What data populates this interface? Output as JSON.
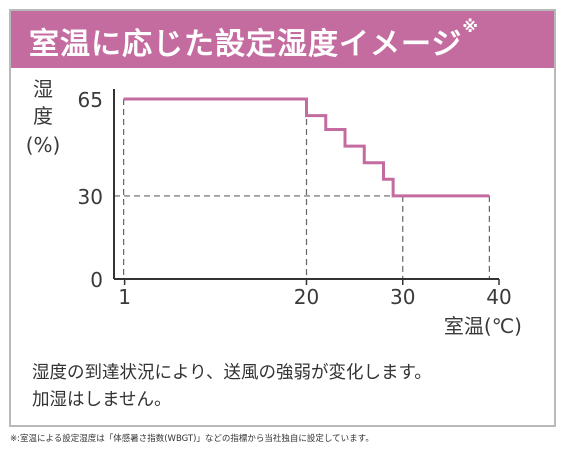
{
  "header": {
    "title": "室温に応じた設定湿度イメージ",
    "mark": "※"
  },
  "chart_data": {
    "type": "line",
    "ylabel": "湿度(%)",
    "xlabel": "室温(℃)",
    "x_ticks": [
      1,
      20,
      30,
      40
    ],
    "y_ticks": [
      65,
      30,
      0
    ],
    "xlim": [
      0,
      40
    ],
    "ylim": [
      0,
      65
    ],
    "grid": false,
    "series": [
      {
        "x": [
          1,
          20,
          20,
          22,
          22,
          24,
          24,
          26,
          26,
          28,
          28,
          29,
          29,
          30,
          30,
          39
        ],
        "y": [
          65,
          65,
          59,
          59,
          54,
          54,
          48,
          48,
          42,
          42,
          36,
          36,
          30,
          30,
          30,
          30
        ]
      }
    ],
    "reference_points": [
      {
        "x": 1,
        "y": 65
      },
      {
        "x": 20,
        "y": 65
      },
      {
        "x": 30,
        "y": 30
      },
      {
        "x": 39,
        "y": 30
      }
    ],
    "line_color": "#c46c9f"
  },
  "description": {
    "line1": "湿度の到達状況により、送風の強弱が変化します。",
    "line2": "加湿はしません。"
  },
  "footnote": "※:室温による設定湿度は「体感暑さ指数(WBGT)」などの指標から当社独自に設定しています。"
}
